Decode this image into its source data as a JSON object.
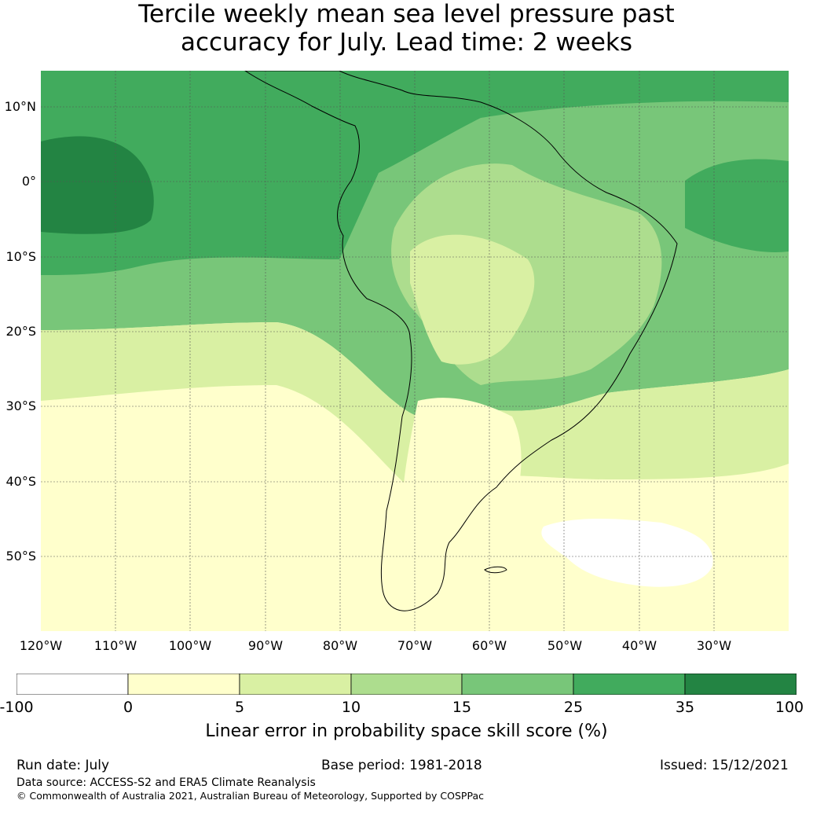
{
  "title_line1": "Tercile weekly mean sea level pressure past",
  "title_line2": "accuracy for July. Lead time: 2 weeks",
  "map": {
    "lat_labels": [
      "10°N",
      "0°",
      "10°S",
      "20°S",
      "30°S",
      "40°S",
      "50°S"
    ],
    "lon_labels": [
      "120°W",
      "110°W",
      "100°W",
      "90°W",
      "80°W",
      "70°W",
      "60°W",
      "50°W",
      "40°W",
      "30°W"
    ],
    "extent": {
      "lon_min": -121,
      "lon_max": -21,
      "lat_min": -60,
      "lat_max": 15
    }
  },
  "colorbar": {
    "ticks": [
      "-100",
      "0",
      "5",
      "10",
      "15",
      "25",
      "35",
      "100"
    ],
    "colors": [
      "#ffffff",
      "#ffffcc",
      "#d9f0a3",
      "#addd8e",
      "#78c679",
      "#41ab5d",
      "#238443"
    ],
    "label": "Linear error in probability space skill score (%)"
  },
  "footer": {
    "run_date": "Run date: July",
    "base_period": "Base period: 1981-2018",
    "issued": "Issued: 15/12/2021",
    "data_source": "Data source: ACCESS-S2 and ERA5 Climate Reanalysis",
    "copyright": "© Commonwealth of Australia 2021, Australian Bureau of Meteorology, Supported by COSPPac"
  }
}
